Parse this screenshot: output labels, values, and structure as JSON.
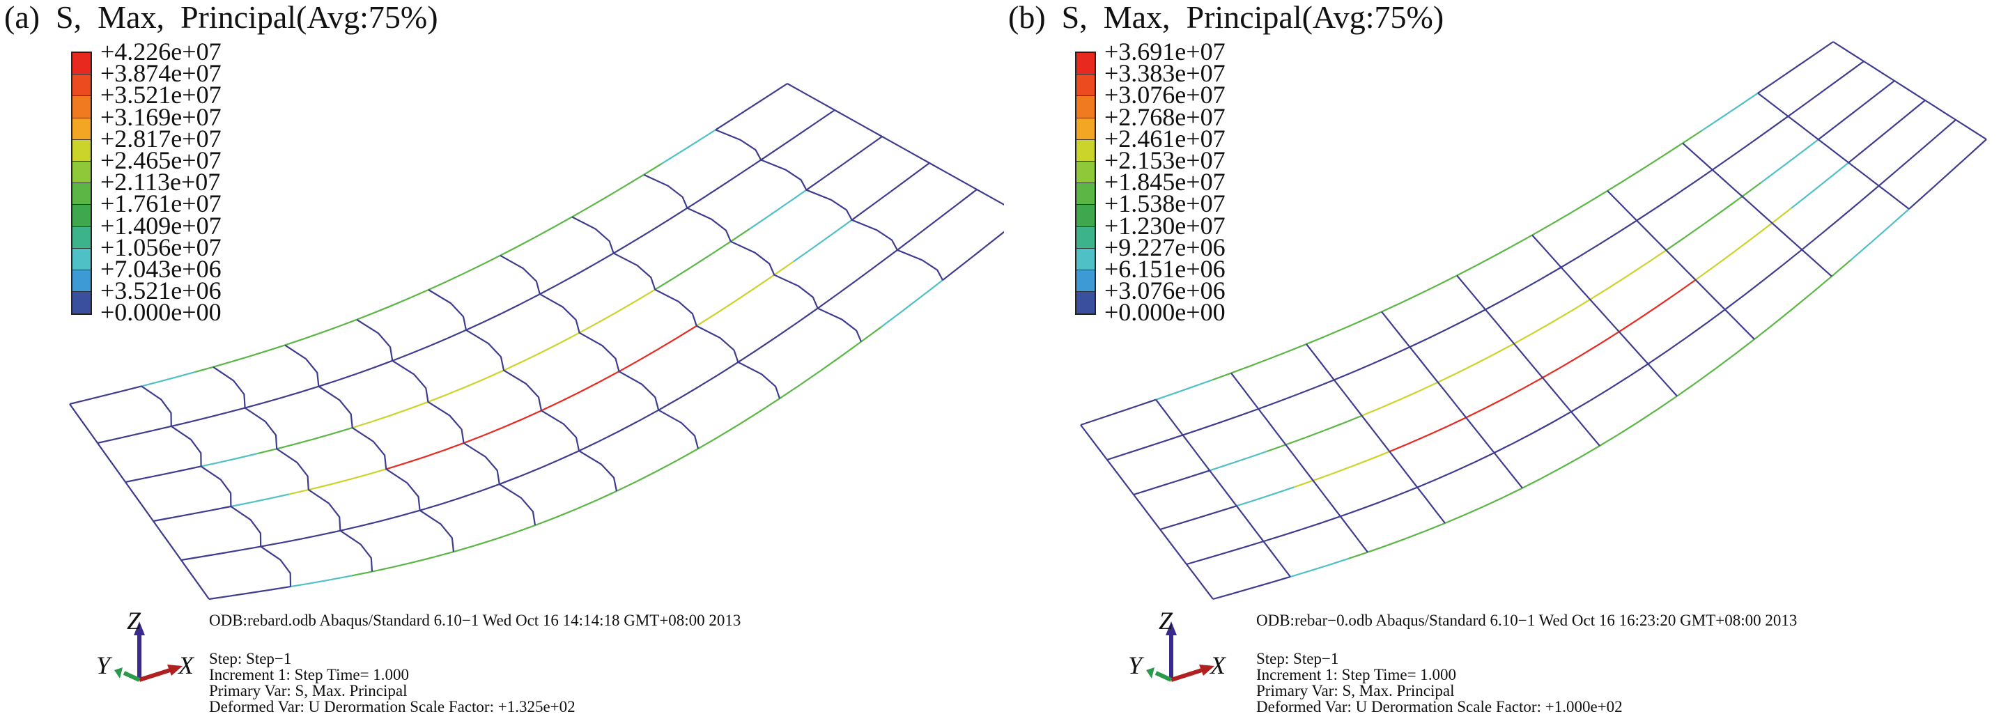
{
  "panels": [
    {
      "title": "(a)  S,  Max,  Principal(Avg:75%)",
      "legend": [
        {
          "label": "+4.226e+07",
          "color": "#e8291f"
        },
        {
          "label": "+3.874e+07",
          "color": "#ec4a1f"
        },
        {
          "label": "+3.521e+07",
          "color": "#f07a1f"
        },
        {
          "label": "+3.169e+07",
          "color": "#f3a624"
        },
        {
          "label": "+2.817e+07",
          "color": "#cbd42a"
        },
        {
          "label": "+2.465e+07",
          "color": "#8fc93a"
        },
        {
          "label": "+2.113e+07",
          "color": "#5bb646"
        },
        {
          "label": "+1.761e+07",
          "color": "#3fa84e"
        },
        {
          "label": "+1.409e+07",
          "color": "#3db38c"
        },
        {
          "label": "+1.056e+07",
          "color": "#4fc0c6"
        },
        {
          "label": "+7.043e+06",
          "color": "#3d9ad4"
        },
        {
          "label": "+3.521e+06",
          "color": "#3a4f9e"
        },
        {
          "label": "+0.000e+00",
          "color": "#3e3c8e"
        }
      ],
      "odb_line": "ODB:rebard.odb Abaqus/Standard 6.10−1 Wed Oct 16 14:14:18 GMT+08:00 2013",
      "step_lines": [
        "Step: Step−1",
        "Increment      1: Step Time= 1.000",
        "Primary Var: S, Max. Principal",
        "Deformed Var: U Derormation Scale Factor: +1.325e+02"
      ],
      "axes": {
        "z": "Z",
        "y": "Y",
        "x": "X"
      }
    },
    {
      "title": "(b)  S,  Max,  Principal(Avg:75%)",
      "legend": [
        {
          "label": "+3.691e+07",
          "color": "#e8291f"
        },
        {
          "label": "+3.383e+07",
          "color": "#ec4a1f"
        },
        {
          "label": "+3.076e+07",
          "color": "#f07a1f"
        },
        {
          "label": "+2.768e+07",
          "color": "#f3a624"
        },
        {
          "label": "+2.461e+07",
          "color": "#cbd42a"
        },
        {
          "label": "+2.153e+07",
          "color": "#8fc93a"
        },
        {
          "label": "+1.845e+07",
          "color": "#5bb646"
        },
        {
          "label": "+1.538e+07",
          "color": "#3fa84e"
        },
        {
          "label": "+1.230e+07",
          "color": "#3db38c"
        },
        {
          "label": "+9.227e+06",
          "color": "#4fc0c6"
        },
        {
          "label": "+6.151e+06",
          "color": "#3d9ad4"
        },
        {
          "label": "+3.076e+06",
          "color": "#3a4f9e"
        },
        {
          "label": "+0.000e+00",
          "color": "#3e3c8e"
        }
      ],
      "odb_line": "ODB:rebar−0.odb Abaqus/Standard 6.10−1 Wed Oct 16 16:23:20 GMT+08:00 2013",
      "step_lines": [
        "Step: Step−1",
        "Increment      1: Step Time= 1.000",
        "Primary Var: S, Max. Principal",
        "Deformed Var: U Derormation Scale Factor: +1.000e+02"
      ],
      "axes": {
        "z": "Z",
        "y": "Y",
        "x": "X"
      }
    }
  ],
  "colors": {
    "mesh_default": "#4b4a9a",
    "axis_z": "#3a2a8e",
    "axis_x": "#b02020",
    "axis_y": "#2a9a4a"
  }
}
